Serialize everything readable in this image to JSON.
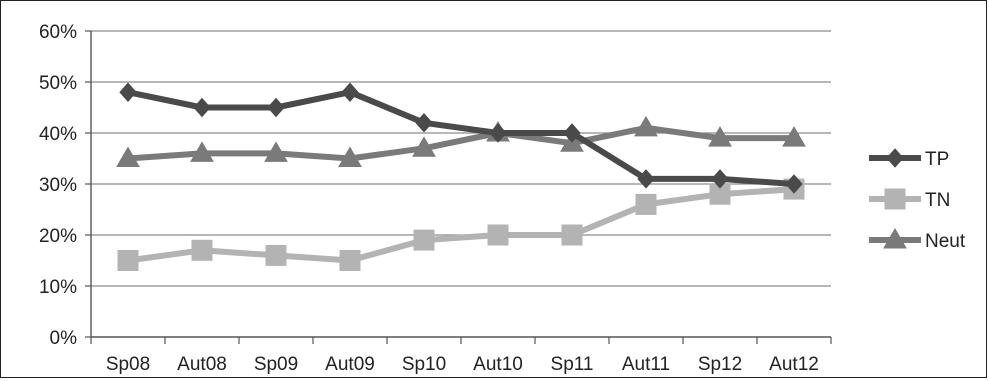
{
  "chart_data": {
    "type": "line",
    "title": "",
    "xlabel": "",
    "ylabel": "",
    "categories": [
      "Sp08",
      "Aut08",
      "Sp09",
      "Aut09",
      "Sp10",
      "Aut10",
      "Sp11",
      "Aut11",
      "Sp12",
      "Aut12"
    ],
    "y_ticks": [
      "0%",
      "10%",
      "20%",
      "30%",
      "40%",
      "50%",
      "60%"
    ],
    "ylim": [
      0,
      60
    ],
    "grid": true,
    "legend_position": "right",
    "series": [
      {
        "name": "TP",
        "marker": "diamond",
        "color": "#4a4a4a",
        "values": [
          48,
          45,
          45,
          48,
          42,
          40,
          40,
          31,
          31,
          30
        ]
      },
      {
        "name": "TN",
        "marker": "square",
        "color": "#b3b3b3",
        "values": [
          15,
          17,
          16,
          15,
          19,
          20,
          20,
          26,
          28,
          29
        ]
      },
      {
        "name": "Neut",
        "marker": "triangle",
        "color": "#7a7a7a",
        "values": [
          35,
          36,
          36,
          35,
          37,
          40,
          38,
          41,
          39,
          39
        ]
      }
    ]
  }
}
